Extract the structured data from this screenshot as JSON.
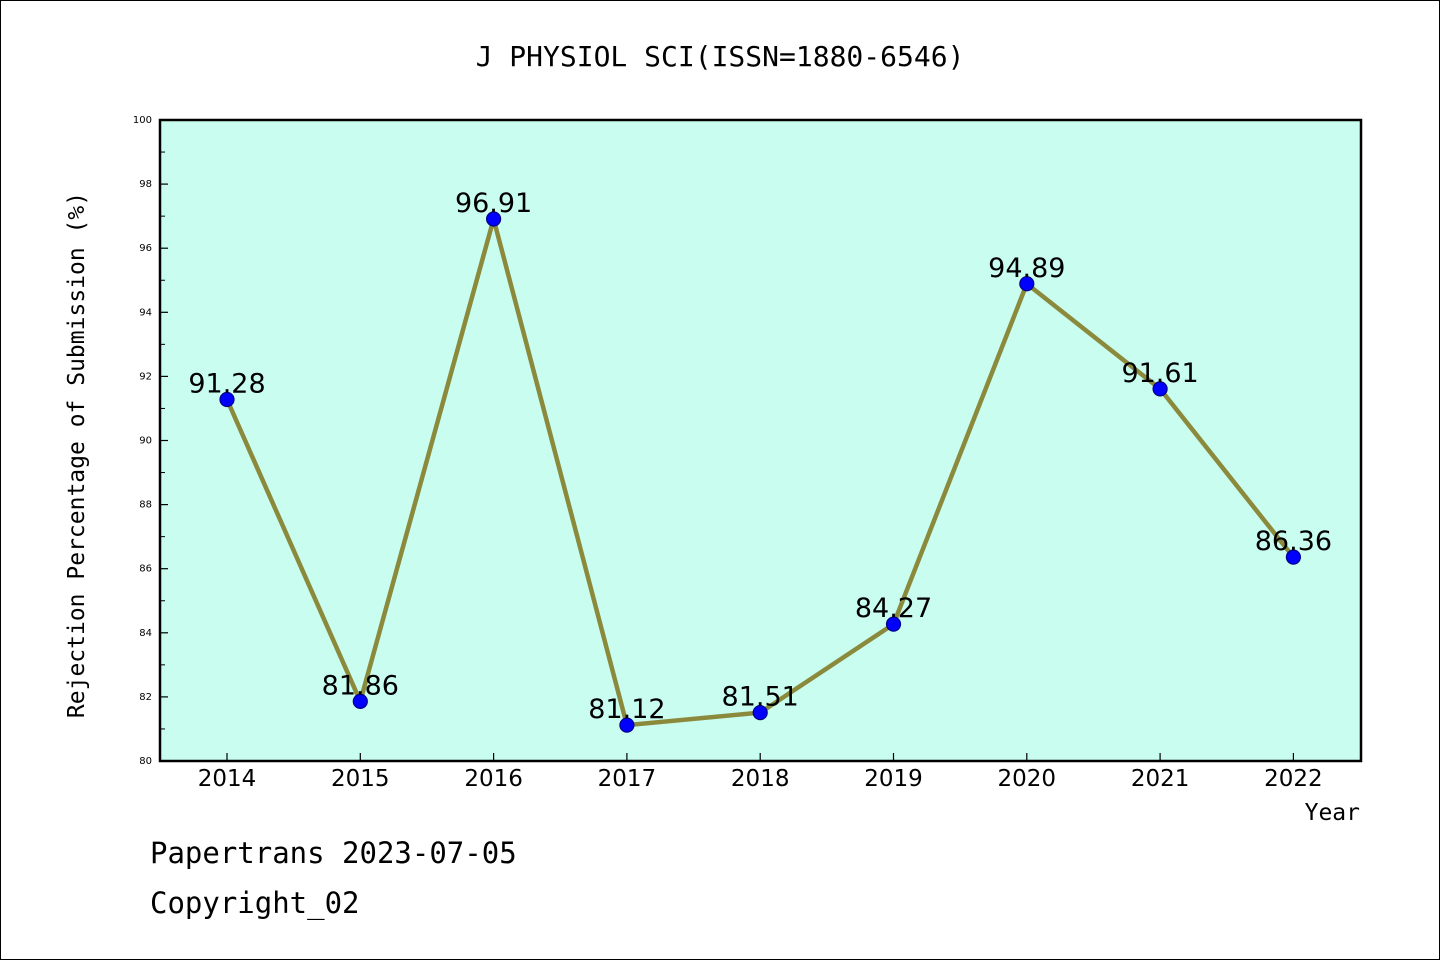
{
  "chart_data": {
    "type": "line",
    "title": "J PHYSIOL SCI(ISSN=1880-6546)",
    "xlabel": "Year",
    "ylabel": "Rejection Percentage of Submission (%)",
    "categories": [
      "2014",
      "2015",
      "2016",
      "2017",
      "2018",
      "2019",
      "2020",
      "2021",
      "2022"
    ],
    "values": [
      91.28,
      81.86,
      96.91,
      81.12,
      81.51,
      84.27,
      94.89,
      91.61,
      86.36
    ],
    "data_labels": [
      "91.28",
      "81.86",
      "96.91",
      "81.12",
      "81.51",
      "84.27",
      "94.89",
      "91.61",
      "86.36"
    ],
    "ylim": [
      80,
      100
    ],
    "yticks": [
      80,
      82,
      84,
      86,
      88,
      90,
      92,
      94,
      96,
      98,
      100
    ],
    "grid": false,
    "legend": "none",
    "colors": {
      "plot_background": "#c8fdef",
      "line": "#8b8a3c",
      "marker": "#0000ff",
      "marker_edge": "#00008b"
    }
  },
  "footer": {
    "source": "Papertrans 2023-07-05",
    "copyright": "Copyright_02"
  }
}
